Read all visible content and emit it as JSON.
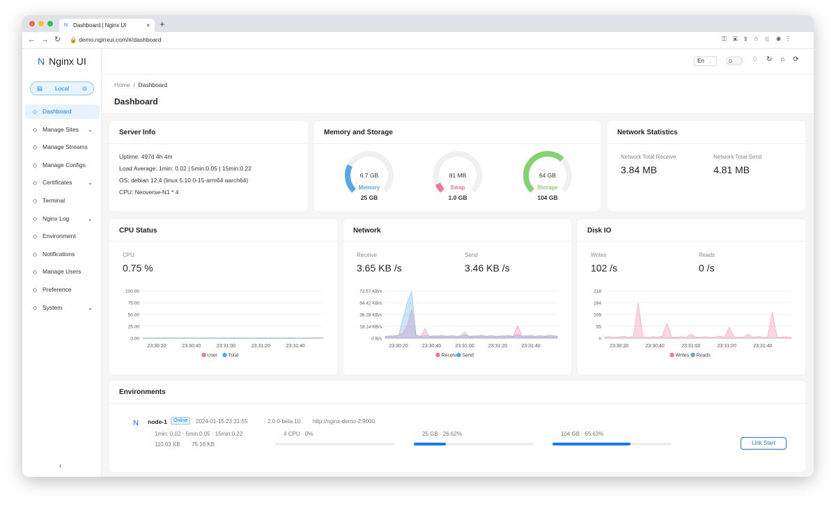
{
  "browser": {
    "tab_title": "Dashboard | Nginx UI",
    "url": "demo.nginxui.com/#/dashboard"
  },
  "sidebar": {
    "logo": "Nginx UI",
    "node": "Local",
    "menu": [
      {
        "label": "Dashboard",
        "active": true
      },
      {
        "label": "Manage Sites",
        "expandable": true
      },
      {
        "label": "Manage Streams"
      },
      {
        "label": "Manage Configs"
      },
      {
        "label": "Certificates",
        "expandable": true
      },
      {
        "label": "Terminal"
      },
      {
        "label": "Nginx Log",
        "expandable": true
      },
      {
        "label": "Environment"
      },
      {
        "label": "Notifications"
      },
      {
        "label": "Manage Users"
      },
      {
        "label": "Preference"
      },
      {
        "label": "System",
        "expandable": true
      }
    ]
  },
  "header": {
    "language": "En"
  },
  "breadcrumb": [
    "Home",
    "Dashboard"
  ],
  "page_title": "Dashboard",
  "server_info": {
    "title": "Server Info",
    "lines": [
      "Uptime: 497d 4h 4m",
      "Load Average: 1min: 0.02 | 5min:0.05 | 15min:0.22",
      "OS: debian 12.4 (linux 5.10.0-15-arm64 aarch64)",
      "CPU: Neoverse-N1 * 4"
    ]
  },
  "memory_storage": {
    "title": "Memory and Storage",
    "gauges": [
      {
        "used": "6.7 GB",
        "name": "Memory",
        "total": "25 GB",
        "percent": 26.62,
        "color": "#52a9e6"
      },
      {
        "used": "81 MB",
        "name": "Swap",
        "total": "1.0 GB",
        "percent": 8,
        "color": "#f5739a"
      },
      {
        "used": "64 GB",
        "name": "Storage",
        "total": "104 GB",
        "percent": 65.63,
        "color": "#85d36f"
      }
    ]
  },
  "network_stats": {
    "title": "Network Statistics",
    "items": [
      {
        "label": "Network Total Receive",
        "value": "3.84 MB"
      },
      {
        "label": "Network Total Send",
        "value": "4.81 MB"
      }
    ]
  },
  "charts": [
    {
      "type": "area",
      "title": "CPU Status",
      "stats": [
        {
          "label": "CPU",
          "value": "0.75 %"
        }
      ],
      "ylim": [
        0,
        100
      ],
      "yticks": [
        {
          "value": 100,
          "label": "100.00"
        },
        {
          "value": 75,
          "label": "75.00"
        },
        {
          "value": 50,
          "label": "50.00"
        },
        {
          "value": 25,
          "label": "25.00"
        },
        {
          "value": 0,
          "label": "0.00"
        }
      ],
      "xlabels": [
        "23:30:20",
        "23:30:40",
        "23:31:00",
        "23:31:20",
        "23:31:40"
      ],
      "grid": true,
      "series": [
        {
          "name": "User",
          "color": "#f5739a",
          "values": [
            0.4,
            0.5,
            0.3,
            0.6,
            0.4,
            0.5,
            0.4,
            0.3,
            0.5,
            0.6,
            0.4,
            0.5,
            0.3,
            0.4,
            0.6,
            0.5,
            0.4,
            0.3,
            0.5,
            0.4,
            0.6,
            0.4,
            0.5,
            0.3,
            0.4,
            0.5,
            0.6,
            0.4,
            0.3,
            0.5,
            0.4,
            0.5,
            0.6,
            0.4,
            0.3,
            0.5,
            0.4,
            0.6,
            0.5,
            0.4
          ]
        },
        {
          "name": "Total",
          "color": "#52a9e6",
          "values": [
            0.7,
            0.8,
            0.6,
            0.9,
            0.7,
            0.8,
            0.7,
            0.6,
            0.8,
            0.9,
            0.7,
            0.8,
            0.6,
            0.7,
            0.9,
            0.8,
            0.7,
            0.6,
            0.8,
            0.7,
            0.9,
            0.7,
            0.8,
            0.6,
            0.7,
            0.8,
            0.9,
            0.7,
            0.6,
            0.8,
            0.7,
            0.8,
            0.9,
            0.7,
            0.6,
            0.8,
            0.7,
            0.9,
            0.8,
            0.7
          ]
        }
      ]
    },
    {
      "type": "area",
      "title": "Network",
      "stats": [
        {
          "label": "Receive",
          "value": "3.65 KB /s"
        },
        {
          "label": "Send",
          "value": "3.46 KB /s"
        }
      ],
      "ylim": [
        0,
        72.57
      ],
      "yticks": [
        {
          "value": 72.57,
          "label": "72.57 KB/s"
        },
        {
          "value": 54.42,
          "label": "54.42 KB/s"
        },
        {
          "value": 36.28,
          "label": "36.28 KB/s"
        },
        {
          "value": 18.14,
          "label": "18.14 KB/s"
        },
        {
          "value": 0,
          "label": "0 B/s"
        }
      ],
      "xlabels": [
        "23:30:20",
        "23:30:40",
        "23:31:00",
        "23:31:20",
        "23:31:40"
      ],
      "grid": true,
      "series": [
        {
          "name": "Receive",
          "color": "#f5739a",
          "values": [
            3,
            4,
            3,
            5,
            8,
            20,
            45,
            4,
            3,
            15,
            3,
            4,
            3,
            5,
            3,
            4,
            3,
            4,
            10,
            3,
            4,
            3,
            5,
            3,
            4,
            3,
            4,
            3,
            5,
            3,
            20,
            4,
            3,
            5,
            3,
            4,
            3,
            5,
            4,
            3
          ]
        },
        {
          "name": "Send",
          "color": "#52a9e6",
          "values": [
            3,
            3,
            4,
            4,
            30,
            55,
            72,
            5,
            3,
            4,
            3,
            3,
            4,
            3,
            3,
            4,
            3,
            3,
            5,
            3,
            3,
            4,
            3,
            3,
            4,
            3,
            3,
            4,
            3,
            3,
            6,
            3,
            4,
            3,
            3,
            4,
            3,
            3,
            4,
            3
          ]
        }
      ]
    },
    {
      "type": "area",
      "title": "Disk IO",
      "stats": [
        {
          "label": "Writes",
          "value": "102 /s"
        },
        {
          "label": "Reads",
          "value": "0 /s"
        }
      ],
      "ylim": [
        0,
        218
      ],
      "yticks": [
        218,
        164,
        109,
        55,
        0
      ],
      "xlabels": [
        "23:30:20",
        "23:30:40",
        "23:31:00",
        "23:31:20",
        "23:31:40"
      ],
      "grid": true,
      "series": [
        {
          "name": "Writes",
          "color": "#f5739a",
          "values": [
            5,
            8,
            4,
            6,
            10,
            5,
            8,
            164,
            6,
            4,
            8,
            5,
            10,
            70,
            6,
            5,
            8,
            4,
            20,
            6,
            5,
            8,
            4,
            6,
            10,
            5,
            50,
            8,
            4,
            6,
            20,
            5,
            8,
            6,
            4,
            120,
            6,
            5,
            8,
            4
          ]
        },
        {
          "name": "Reads",
          "color": "#52a9e6",
          "values": [
            0,
            0,
            0,
            0,
            0,
            0,
            0,
            0,
            0,
            0,
            0,
            0,
            0,
            0,
            0,
            0,
            0,
            0,
            0,
            0,
            0,
            0,
            0,
            0,
            0,
            0,
            0,
            0,
            0,
            0,
            0,
            0,
            0,
            0,
            0,
            0,
            0,
            0,
            0,
            0
          ]
        }
      ]
    }
  ],
  "environments": {
    "title": "Environments",
    "nodes": [
      {
        "name": "node-1",
        "status": "Online",
        "time": "2024-01-15 23:31:55",
        "version": "2.0.0-beta.10",
        "url": "http://nginx-demo-2:9000",
        "load": "1min: 0.02 · 5min:0.05 · 15min:0.22",
        "up": "110.63 KB",
        "down": "75.16 KB",
        "bars": [
          {
            "label": "4 CPU · 0%",
            "value": 0
          },
          {
            "label": "25 GB · 26.62%",
            "value": 26.62
          },
          {
            "label": "104 GB · 65.63%",
            "value": 65.63
          }
        ],
        "button": "Link Start"
      }
    ]
  }
}
